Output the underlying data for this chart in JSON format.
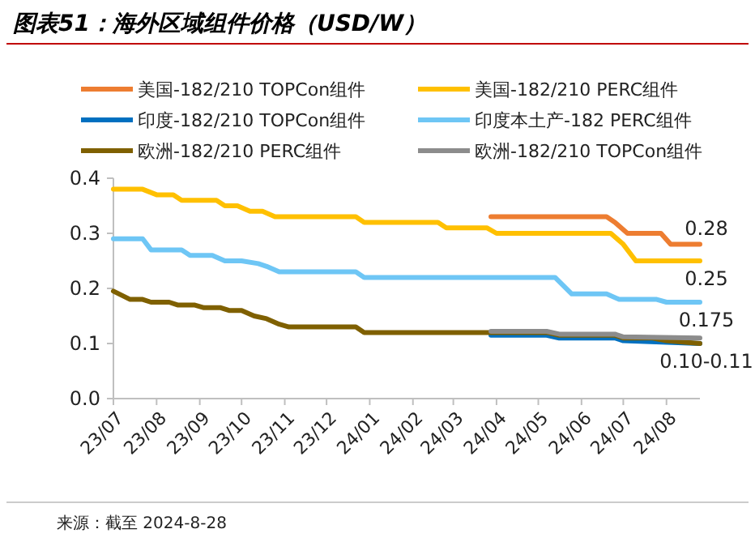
{
  "chart_data": {
    "type": "line",
    "title": "图表51：海外区域组件价格（USD/W）",
    "xlim": [
      "2023-07-01",
      "2024-08-25"
    ],
    "xticks": [
      {
        "value": "2023-07",
        "label": "23/07"
      },
      {
        "value": "2023-08",
        "label": "23/08"
      },
      {
        "value": "2023-09",
        "label": "23/09"
      },
      {
        "value": "2023-10",
        "label": "23/10"
      },
      {
        "value": "2023-11",
        "label": "23/11"
      },
      {
        "value": "2023-12",
        "label": "23/12"
      },
      {
        "value": "2024-01",
        "label": "24/01"
      },
      {
        "value": "2024-02",
        "label": "24/02"
      },
      {
        "value": "2024-03",
        "label": "24/03"
      },
      {
        "value": "2024-04",
        "label": "24/04"
      },
      {
        "value": "2024-05",
        "label": "24/05"
      },
      {
        "value": "2024-06",
        "label": "24/06"
      },
      {
        "value": "2024-07",
        "label": "24/07"
      },
      {
        "value": "2024-08",
        "label": "24/08"
      }
    ],
    "ylim": [
      0,
      0.4
    ],
    "yticks": [
      {
        "value": 0,
        "label": "0.0"
      },
      0.1,
      0.2,
      0.3,
      0.4
    ],
    "legend": "top",
    "marker": "none",
    "line_style": "solid",
    "series": [
      {
        "name": "美国-182/210 TOPCon组件",
        "color": "#ed7d31",
        "x": [
          "2024-03-28",
          "2024-06-19",
          "2024-06-25",
          "2024-07-04",
          "2024-07-28",
          "2024-08-04",
          "2024-08-25"
        ],
        "values": [
          0.33,
          0.33,
          0.32,
          0.3,
          0.3,
          0.28,
          0.28
        ]
      },
      {
        "name": "美国-182/210 PERC组件",
        "color": "#ffc000",
        "x": [
          "2023-07-01",
          "2023-07-22",
          "2023-08-01",
          "2023-08-13",
          "2023-08-19",
          "2023-09-13",
          "2023-09-19",
          "2023-09-28",
          "2023-10-07",
          "2023-10-16",
          "2023-10-25",
          "2023-12-22",
          "2023-12-28",
          "2024-02-19",
          "2024-02-25",
          "2024-03-25",
          "2024-04-01",
          "2024-06-22",
          "2024-07-01",
          "2024-07-10",
          "2024-08-25"
        ],
        "values": [
          0.38,
          0.38,
          0.37,
          0.37,
          0.36,
          0.36,
          0.35,
          0.35,
          0.34,
          0.34,
          0.33,
          0.33,
          0.32,
          0.32,
          0.31,
          0.31,
          0.3,
          0.3,
          0.28,
          0.25,
          0.25
        ]
      },
      {
        "name": "印度-182/210 TOPCon组件",
        "color": "#0070c0",
        "x": [
          "2024-03-28",
          "2024-05-07",
          "2024-05-16",
          "2024-06-25",
          "2024-07-01",
          "2024-08-25"
        ],
        "values": [
          0.115,
          0.115,
          0.11,
          0.11,
          0.105,
          0.1
        ]
      },
      {
        "name": "印度本土产-182 PERC组件",
        "color": "#6ec6f5",
        "x": [
          "2023-07-01",
          "2023-07-22",
          "2023-07-28",
          "2023-08-19",
          "2023-08-25",
          "2023-09-10",
          "2023-09-19",
          "2023-10-01",
          "2023-10-13",
          "2023-10-19",
          "2023-10-28",
          "2023-12-22",
          "2023-12-28",
          "2024-05-13",
          "2024-05-25",
          "2024-06-19",
          "2024-06-28",
          "2024-07-25",
          "2024-08-01",
          "2024-08-25"
        ],
        "values": [
          0.29,
          0.29,
          0.27,
          0.27,
          0.26,
          0.26,
          0.25,
          0.25,
          0.245,
          0.24,
          0.23,
          0.23,
          0.22,
          0.22,
          0.19,
          0.19,
          0.18,
          0.18,
          0.175,
          0.175
        ]
      },
      {
        "name": "欧洲-182/210 PERC组件",
        "color": "#7f6000",
        "x": [
          "2023-07-01",
          "2023-07-13",
          "2023-07-22",
          "2023-07-28",
          "2023-08-10",
          "2023-08-16",
          "2023-08-28",
          "2023-09-04",
          "2023-09-16",
          "2023-09-22",
          "2023-10-01",
          "2023-10-10",
          "2023-10-19",
          "2023-10-28",
          "2023-11-04",
          "2023-12-22",
          "2023-12-28",
          "2024-05-07",
          "2024-05-16",
          "2024-06-25",
          "2024-07-01",
          "2024-07-22",
          "2024-08-01",
          "2024-08-25"
        ],
        "values": [
          0.195,
          0.18,
          0.18,
          0.175,
          0.175,
          0.17,
          0.17,
          0.165,
          0.165,
          0.16,
          0.16,
          0.15,
          0.145,
          0.135,
          0.13,
          0.13,
          0.12,
          0.12,
          0.115,
          0.115,
          0.11,
          0.11,
          0.105,
          0.1
        ]
      },
      {
        "name": "欧洲-182/210 TOPCon组件",
        "color": "#8c8c8c",
        "x": [
          "2024-03-28",
          "2024-05-07",
          "2024-05-16",
          "2024-06-25",
          "2024-07-01",
          "2024-08-25"
        ],
        "values": [
          0.122,
          0.122,
          0.117,
          0.117,
          0.112,
          0.11
        ]
      }
    ],
    "annotations": [
      {
        "text": "0.28",
        "x": "2024-08-25",
        "y": 0.28
      },
      {
        "text": "0.25",
        "x": "2024-08-25",
        "y": 0.25
      },
      {
        "text": "0.175",
        "x": "2024-08-25",
        "y": 0.175
      },
      {
        "text": "0.10-0.11",
        "x": "2024-08-25",
        "y": 0.1
      },
      "来源：截至 2024-8-28"
    ]
  }
}
